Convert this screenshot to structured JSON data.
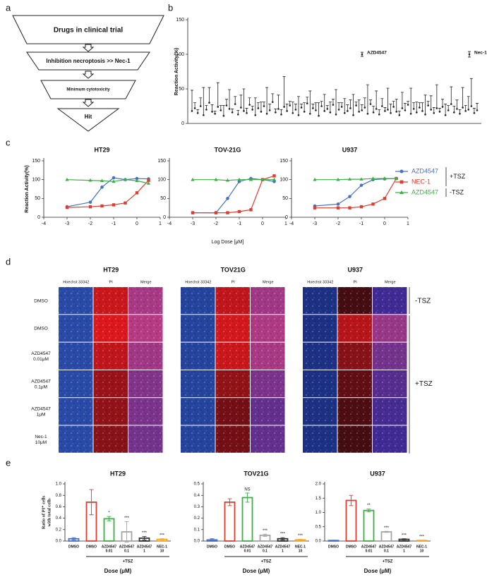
{
  "panel_labels": [
    "a",
    "b",
    "c",
    "d",
    "e"
  ],
  "flowchart": {
    "steps": [
      "Drugs in clinical trial",
      "Inhibition necroptosis >> Nec-1",
      "Minimum cytotoxicity",
      "Hit"
    ]
  },
  "chart_data": [
    {
      "type": "scatter-errorbar",
      "ylabel": "Reaction Activity(%)",
      "ylim": [
        0,
        150
      ],
      "yticks": [
        0,
        50,
        100,
        150
      ],
      "color": "#222222",
      "values": [
        18,
        22,
        15,
        25,
        12,
        20,
        30,
        17,
        14,
        24,
        19,
        11,
        26,
        21,
        16,
        28,
        13,
        23,
        18,
        15,
        27,
        20,
        12,
        22,
        17,
        25,
        14,
        19,
        31,
        16,
        21,
        13,
        24,
        18,
        26,
        15,
        20,
        12,
        23,
        17,
        29,
        14,
        22,
        19,
        11,
        25,
        18,
        21,
        16,
        27,
        13,
        20,
        24,
        15,
        18,
        22,
        12,
        26,
        17,
        19,
        23,
        14,
        28,
        16,
        21,
        13,
        25,
        18,
        20,
        15,
        24,
        17,
        12,
        22,
        19,
        27,
        14,
        21,
        16,
        23,
        18,
        13,
        26,
        20,
        15,
        22,
        17,
        24,
        12,
        19,
        28,
        16,
        21,
        14,
        23,
        18,
        20,
        25,
        15,
        19
      ],
      "errors": [
        30,
        8,
        5,
        12,
        40,
        6,
        22,
        10,
        4,
        35,
        7,
        15,
        9,
        28,
        5,
        11,
        6,
        18,
        32,
        7,
        10,
        5,
        25,
        8,
        14,
        6,
        38,
        9,
        12,
        5,
        20,
        7,
        44,
        10,
        6,
        16,
        8,
        27,
        5,
        13,
        9,
        33,
        6,
        11,
        19,
        7,
        24,
        5,
        15,
        8,
        36,
        10,
        6,
        21,
        9,
        12,
        30,
        5,
        17,
        8,
        14,
        42,
        6,
        9,
        26,
        7,
        11,
        5,
        31,
        13,
        8,
        18,
        6,
        23,
        10,
        5,
        37,
        9,
        15,
        7,
        12,
        28,
        6,
        20,
        8,
        34,
        5,
        11,
        16,
        7,
        25,
        9,
        13,
        6,
        29,
        8,
        19,
        40,
        7,
        10
      ],
      "highlights": [
        {
          "label": "AZD4547",
          "value": 100,
          "error": 3
        },
        {
          "label": "Nec-1",
          "value": 100,
          "error": 4
        }
      ]
    },
    {
      "type": "dose-response",
      "ylabel": "Reaction Activity(%)",
      "xlabel": "Log Dose [μM]",
      "x": [
        -3,
        -2,
        -1.5,
        -1,
        -0.5,
        0,
        0.5
      ],
      "xlim": [
        -4,
        1
      ],
      "xticks": [
        -4,
        -3,
        -2,
        -1,
        0,
        1
      ],
      "ylim": [
        0,
        150
      ],
      "yticks": [
        0,
        50,
        100,
        150
      ],
      "legend_groups": [
        {
          "label": "+TSZ",
          "series": [
            {
              "name": "AZD4547",
              "color": "#4472c4",
              "marker": "circle"
            },
            {
              "name": "NEC-1",
              "color": "#e03c31",
              "marker": "square"
            }
          ]
        },
        {
          "label": "-TSZ",
          "series": [
            {
              "name": "AZD4547",
              "color": "#3cb043",
              "marker": "triangle"
            }
          ]
        }
      ],
      "panels": [
        {
          "title": "HT29",
          "values": [
            [
              28,
              40,
              80,
              105,
              100,
              103,
              102
            ],
            [
              26,
              28,
              30,
              33,
              38,
              65,
              98
            ],
            [
              100,
              98,
              97,
              95,
              100,
              97,
              90
            ]
          ]
        },
        {
          "title": "TOV-21G",
          "values": [
            [
              12,
              12,
              50,
              95,
              103,
              100,
              95
            ],
            [
              12,
              12,
              12,
              15,
              20,
              100,
              110
            ],
            [
              100,
              100,
              98,
              100,
              100,
              100,
              100
            ]
          ]
        },
        {
          "title": "U937",
          "values": [
            [
              30,
              35,
              55,
              85,
              100,
              102,
              103
            ],
            [
              25,
              25,
              25,
              28,
              35,
              50,
              103
            ],
            [
              100,
              100,
              101,
              101,
              103,
              103,
              103
            ]
          ]
        }
      ]
    },
    {
      "type": "bar",
      "xlabel": "Dose (μM)",
      "ylabel": [
        "Ratio of PI⁺ cells",
        "with total cells"
      ],
      "categories": [
        "DMSO",
        "DMSO",
        "AZD4547",
        "AZD4547",
        "AZD4547",
        "NEC-1"
      ],
      "doses": [
        null,
        null,
        "0.01",
        "0.1",
        "1",
        "10"
      ],
      "colors": [
        "#4472c4",
        "#e03c31",
        "#3cb043",
        "#a6a6a6",
        "#333333",
        "#f5a623"
      ],
      "group_label": "+TSZ",
      "panels": [
        {
          "title": "HT29",
          "ylim": [
            0,
            1
          ],
          "yticks": [
            {
              "value": 0,
              "label": "0.0"
            },
            0.2,
            0.4,
            0.6,
            0.8,
            {
              "value": 1,
              "label": "1.0"
            }
          ],
          "values": [
            0.04,
            0.68,
            0.39,
            0.16,
            0.05,
            0.03
          ],
          "errors": [
            0.02,
            0.22,
            0.04,
            0.18,
            0.03,
            0.01
          ],
          "sig": [
            null,
            null,
            "*",
            "***",
            "***",
            "***"
          ]
        },
        {
          "title": "TOV21G",
          "ylim": [
            0,
            0.5
          ],
          "yticks": [
            {
              "value": 0,
              "label": "0.0"
            },
            0.1,
            0.2,
            0.3,
            0.4,
            0.5
          ],
          "values": [
            0.01,
            0.34,
            0.38,
            0.05,
            0.02,
            0.01
          ],
          "errors": [
            0.01,
            0.03,
            0.04,
            0.01,
            0.01,
            0.005
          ],
          "sig": [
            null,
            null,
            "NS",
            "***",
            "***",
            "***"
          ]
        },
        {
          "title": "U937",
          "ylim": [
            0,
            2
          ],
          "yticks": [
            {
              "value": 0,
              "label": "0.0"
            },
            0.5,
            {
              "value": 1,
              "label": "1.0"
            },
            1.5,
            {
              "value": 2,
              "label": "2.0"
            }
          ],
          "values": [
            0.02,
            1.42,
            1.07,
            0.32,
            0.06,
            0.02
          ],
          "errors": [
            0.01,
            0.18,
            0.05,
            0.02,
            0.02,
            0.01
          ],
          "sig": [
            null,
            null,
            "**",
            "***",
            "***",
            "***"
          ]
        }
      ]
    }
  ],
  "microscopy": {
    "titles": [
      "HT29",
      "TOV21G",
      "U937"
    ],
    "channels": [
      "Hoechst 33342",
      "PI",
      "Merge"
    ],
    "rows": [
      [
        "DMSO"
      ],
      [
        "DMSO"
      ],
      [
        "AZD4547",
        "0.01μM"
      ],
      [
        "AZD4547",
        "0.1μM"
      ],
      [
        "AZD4547",
        "1μM"
      ],
      [
        "Nec-1",
        "10μM"
      ]
    ],
    "conditions": [
      "-TSZ",
      "+TSZ"
    ]
  }
}
